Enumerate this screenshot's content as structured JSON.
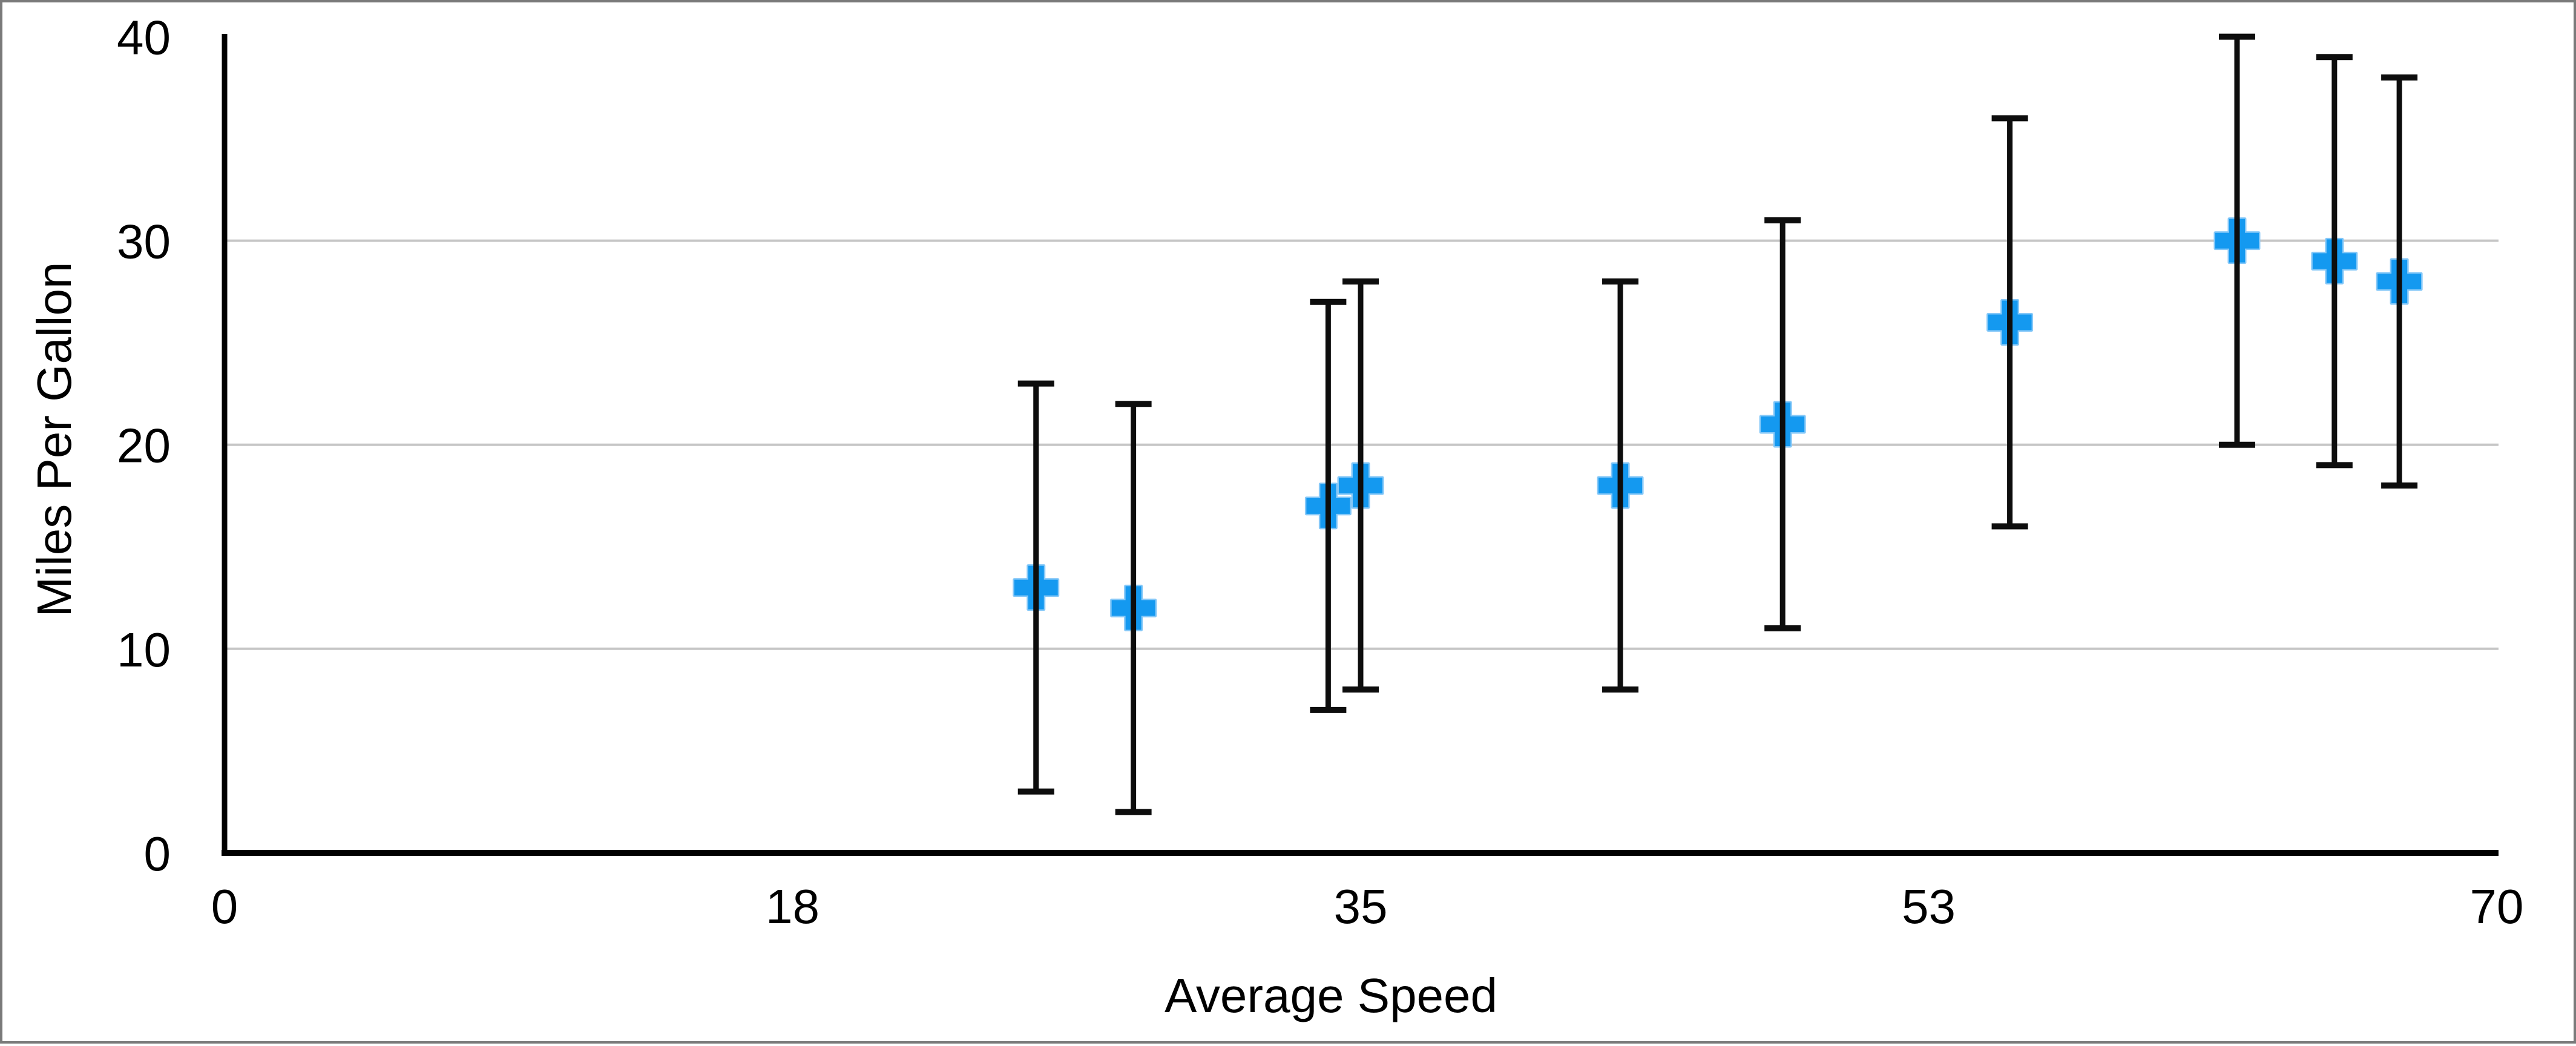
{
  "chart_data": {
    "type": "scatter",
    "title": "",
    "xlabel": "Average Speed",
    "ylabel": "Miles Per Gallon",
    "xlim": [
      0,
      70
    ],
    "ylim": [
      0,
      40
    ],
    "x_ticks": {
      "values": [
        0,
        17.5,
        35,
        52.5,
        70
      ],
      "labels": [
        "0",
        "18",
        "35",
        "53",
        "70"
      ]
    },
    "y_ticks": {
      "values": [
        0,
        10,
        20,
        30,
        40
      ],
      "labels": [
        "0",
        "10",
        "20",
        "30",
        "40"
      ]
    },
    "grid_y": [
      10,
      20,
      30
    ],
    "grid_on": true,
    "legend": "none",
    "series": [
      {
        "name": "Miles Per Gallon",
        "marker": "plus",
        "points": [
          {
            "x": 25,
            "y": 13,
            "error_y": 10
          },
          {
            "x": 28,
            "y": 12,
            "error_y": 10
          },
          {
            "x": 34,
            "y": 17,
            "error_y": 10
          },
          {
            "x": 35,
            "y": 18,
            "error_y": 10
          },
          {
            "x": 43,
            "y": 18,
            "error_y": 10
          },
          {
            "x": 48,
            "y": 21,
            "error_y": 10
          },
          {
            "x": 55,
            "y": 26,
            "error_y": 10
          },
          {
            "x": 62,
            "y": 30,
            "error_y": 10
          },
          {
            "x": 65,
            "y": 29,
            "error_y": 10
          },
          {
            "x": 67,
            "y": 28,
            "error_y": 10
          }
        ]
      }
    ]
  },
  "colors": {
    "marker": "#1499f0",
    "marker_halo": "#85c8f8",
    "error_bar": "#0d0d0d",
    "grid": "#c6c6c6",
    "axis": "#000000",
    "text": "#000000",
    "frame_border": "#7a7a7a",
    "background": "#ffffff"
  }
}
